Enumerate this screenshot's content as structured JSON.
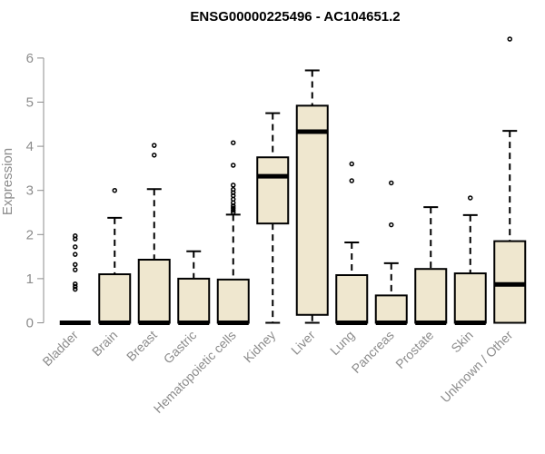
{
  "chart_data": {
    "type": "box",
    "title": "ENSG00000225496 - AC104651.2",
    "ylabel": "Expression",
    "xlabel": "",
    "ylim": [
      0,
      6.5
    ],
    "yticks": [
      0,
      1,
      2,
      3,
      4,
      5,
      6
    ],
    "ytick_labels": [
      "0",
      "1",
      "2",
      "3",
      "4",
      "5",
      "6"
    ],
    "box_fill": "#efe7cf",
    "axis_color": "#8c8c8c",
    "categories": [
      "Bladder",
      "Brain",
      "Breast",
      "Gastric",
      "Hematopoietic cells",
      "Kidney",
      "Liver",
      "Lung",
      "Pancreas",
      "Prostate",
      "Skin",
      "Unknown / Other"
    ],
    "boxes": [
      {
        "min": 0,
        "q1": 0,
        "median": 0,
        "q3": 0,
        "max": 0,
        "outliers": [
          1.97,
          1.9,
          1.72,
          1.55,
          1.32,
          1.2,
          0.88,
          0.82,
          0.76
        ]
      },
      {
        "min": 0,
        "q1": 0,
        "median": 0,
        "q3": 1.1,
        "max": 2.38,
        "outliers": [
          3.0
        ]
      },
      {
        "min": 0,
        "q1": 0,
        "median": 0,
        "q3": 1.43,
        "max": 3.03,
        "outliers": [
          3.8,
          4.02
        ]
      },
      {
        "min": 0,
        "q1": 0,
        "median": 0,
        "q3": 1.0,
        "max": 1.62,
        "outliers": []
      },
      {
        "min": 0,
        "q1": 0,
        "median": 0,
        "q3": 0.98,
        "max": 2.45,
        "outliers": [
          4.08,
          3.57,
          3.12,
          3.02,
          2.95,
          2.88,
          2.8,
          2.72,
          2.65,
          2.6,
          2.55,
          2.5
        ]
      },
      {
        "min": 0,
        "q1": 2.25,
        "median": 3.32,
        "q3": 3.75,
        "max": 4.75,
        "outliers": []
      },
      {
        "min": 0,
        "q1": 0.18,
        "median": 4.33,
        "q3": 4.92,
        "max": 5.72,
        "outliers": []
      },
      {
        "min": 0,
        "q1": 0,
        "median": 0,
        "q3": 1.08,
        "max": 1.82,
        "outliers": [
          3.22,
          3.6
        ]
      },
      {
        "min": 0,
        "q1": 0,
        "median": 0,
        "q3": 0.62,
        "max": 1.35,
        "outliers": [
          2.22,
          3.17
        ]
      },
      {
        "min": 0,
        "q1": 0,
        "median": 0,
        "q3": 1.22,
        "max": 2.62,
        "outliers": []
      },
      {
        "min": 0,
        "q1": 0,
        "median": 0,
        "q3": 1.12,
        "max": 2.44,
        "outliers": [
          2.83
        ]
      },
      {
        "min": 0,
        "q1": 0,
        "median": 0.87,
        "q3": 1.85,
        "max": 4.35,
        "outliers": [
          6.43
        ]
      }
    ]
  }
}
